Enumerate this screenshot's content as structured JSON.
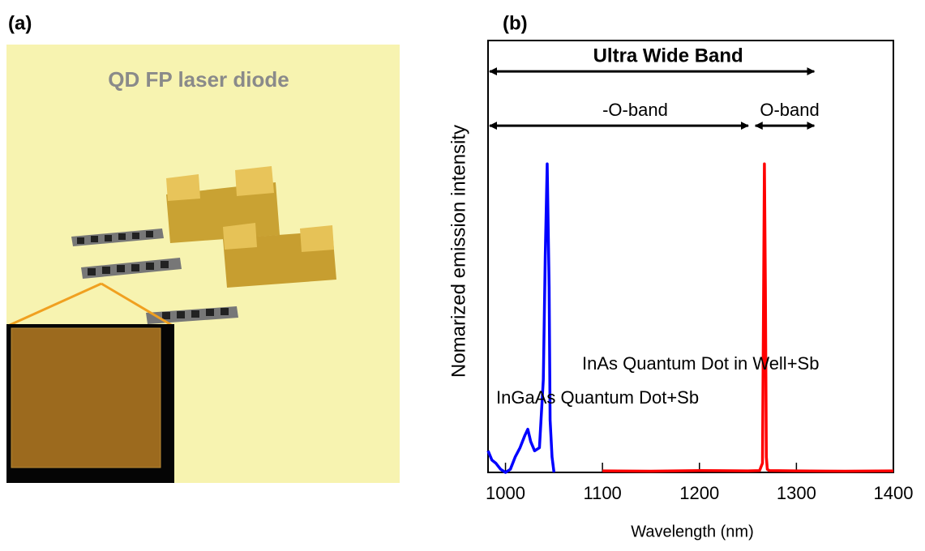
{
  "figure": {
    "label_a": "(a)",
    "photo_caption": "QD FP laser diode"
  },
  "chart_data": {
    "type": "line",
    "panel_label": "(b)",
    "x_label": "Wavelength (nm)",
    "y_label": "Nomarized emission intensity",
    "xlim": [
      982,
      1400
    ],
    "xticks": [
      1000,
      1100,
      1200,
      1300,
      1400
    ],
    "ylim": [
      0,
      1.4
    ],
    "series": [
      {
        "name": "InGaAs Quantum Dot+Sb",
        "color": "#0000ff",
        "x": [
          982,
          986,
          990,
          995,
          1000,
          1005,
          1010,
          1015,
          1020,
          1023,
          1026,
          1030,
          1035,
          1039,
          1041,
          1043,
          1045,
          1046,
          1048,
          1050
        ],
        "values": [
          0.07,
          0.04,
          0.03,
          0.01,
          0.0,
          0.01,
          0.05,
          0.08,
          0.12,
          0.14,
          0.1,
          0.07,
          0.08,
          0.3,
          0.7,
          1.0,
          0.6,
          0.17,
          0.05,
          0.0
        ]
      },
      {
        "name": "InAs Quantum Dot in Well+Sb",
        "color": "#ff0000",
        "x": [
          1100,
          1150,
          1200,
          1250,
          1262,
          1265,
          1266,
          1267,
          1268,
          1269,
          1270,
          1272,
          1300,
          1350,
          1400
        ],
        "values": [
          0.005,
          0.004,
          0.006,
          0.005,
          0.006,
          0.03,
          0.5,
          1.0,
          0.6,
          0.05,
          0.01,
          0.006,
          0.005,
          0.004,
          0.005
        ]
      }
    ],
    "annotations": [
      {
        "text": "Ultra Wide Band",
        "x": [
          982,
          1320
        ],
        "y": 1.3
      },
      {
        "text": "-O-band",
        "x": [
          982,
          1252
        ],
        "y": 1.124
      },
      {
        "text": "O-band",
        "x": [
          1256,
          1320
        ],
        "y": 1.124
      }
    ]
  }
}
